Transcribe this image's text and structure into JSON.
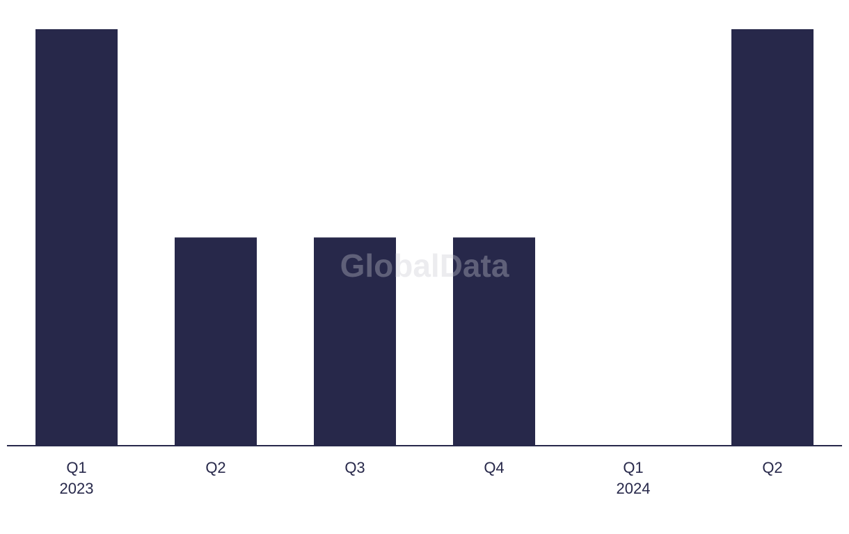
{
  "chart_data": {
    "type": "bar",
    "watermark": "GlobalData",
    "categories": [
      "Q1",
      "Q2",
      "Q3",
      "Q4",
      "Q1",
      "Q2"
    ],
    "years": [
      "2023",
      null,
      null,
      null,
      "2024",
      null
    ],
    "values": [
      2,
      1,
      1,
      1,
      0,
      2
    ],
    "color": "#27284a",
    "ylim": [
      0,
      2
    ]
  }
}
